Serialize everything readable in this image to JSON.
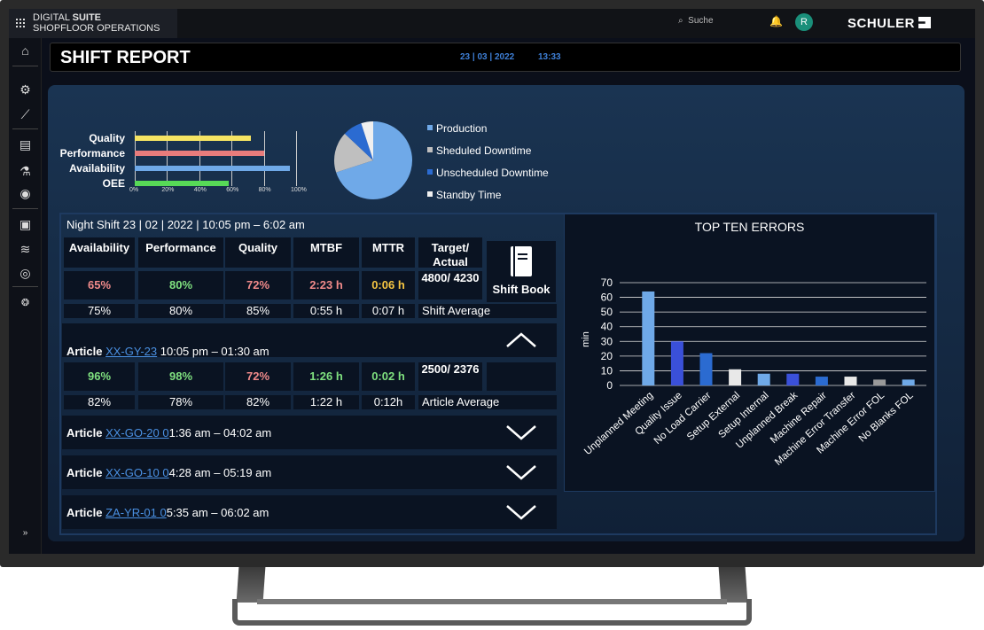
{
  "topbar": {
    "brand_line1_a": "DIGITAL ",
    "brand_line1_b": "SUITE",
    "brand_line2": "SHOPFLOOR OPERATIONS",
    "search_placeholder": "Suche",
    "avatar": "R",
    "logo": "SCHULER"
  },
  "header": {
    "title": "SHIFT REPORT",
    "date": "23 | 03 | 2022",
    "time": "13:33"
  },
  "kpi_bars": {
    "labels": [
      "Quality",
      "Performance",
      "Availability",
      "OEE"
    ],
    "values": [
      72,
      80,
      96,
      58
    ],
    "colors": [
      "#f5e463",
      "#e87c7c",
      "#6fa9e8",
      "#57d957"
    ],
    "ticks": [
      "0%",
      "20%",
      "40%",
      "60%",
      "80%",
      "100%"
    ]
  },
  "pie": {
    "legend": [
      "Production",
      "Sheduled Downtime",
      "Unscheduled Downtime",
      "Standby Time"
    ],
    "values": [
      70,
      17,
      8,
      5
    ],
    "colors": [
      "#6fa9e8",
      "#bfbfbf",
      "#2b6bd1",
      "#f0f0f0"
    ]
  },
  "shift": {
    "title": "Night Shift 23 | 02 | 2022 | 10:05 pm – 6:02 am",
    "headers": [
      "Availability",
      "Performance",
      "Quality",
      "MTBF",
      "MTTR",
      "Target/ Actual"
    ],
    "values": [
      "65%",
      "80%",
      "72%",
      "2:23 h",
      "0:06 h",
      "4800/ 4230"
    ],
    "value_colors": [
      "#f08a8a",
      "#7fe07f",
      "#f08a8a",
      "#f08a8a",
      "#f5c542",
      "#ffffff"
    ],
    "averages": [
      "75%",
      "80%",
      "85%",
      "0:55 h",
      "0:07 h"
    ],
    "average_label": "Shift Average",
    "shift_book": "Shift Book"
  },
  "articles": [
    {
      "prefix": "Article ",
      "code": "XX-GY-23",
      "time": " 10:05 pm – 01:30 am",
      "expanded": true,
      "values": [
        "96%",
        "98%",
        "72%",
        "1:26 h",
        "0:02 h",
        "2500/ 2376"
      ],
      "value_colors": [
        "#7fe07f",
        "#7fe07f",
        "#f08a8a",
        "#7fe07f",
        "#7fe07f",
        "#ffffff"
      ],
      "averages": [
        "82%",
        "78%",
        "82%",
        "1:22 h",
        "0:12h"
      ],
      "average_label": "Article Average"
    },
    {
      "prefix": "Article ",
      "code": "XX-GO-20",
      "code_tail": " 0",
      "time": "1:36 am – 04:02 am",
      "expanded": false
    },
    {
      "prefix": "Article ",
      "code": "XX-GO-10",
      "code_tail": " 0",
      "time": "4:28 am – 05:19 am",
      "expanded": false
    },
    {
      "prefix": "Article ",
      "code": "ZA-YR-01",
      "code_tail": " 0",
      "time": "5:35 am – 06:02 am",
      "expanded": false
    }
  ],
  "chart_data": {
    "type": "bar",
    "title": "TOP TEN ERRORS",
    "ylabel": "min",
    "ylim": [
      0,
      70
    ],
    "yticks": [
      0,
      10,
      20,
      30,
      40,
      50,
      60,
      70
    ],
    "categories": [
      "Unplanned Meeting",
      "Quality Issue",
      "No Load Carrier",
      "Setup External",
      "Setup Internal",
      "Unplanned Break",
      "Machine Repair",
      "Machine Error Transfer",
      "Machine Error FOL",
      "No Blanks FOL"
    ],
    "values": [
      64,
      30,
      22,
      11,
      8,
      8,
      6,
      6,
      4,
      4
    ],
    "colors": [
      "#6fa9e8",
      "#3a50d9",
      "#2b6bd1",
      "#e8e8e8",
      "#6fa9e8",
      "#3a50d9",
      "#2b6bd1",
      "#e8e8e8",
      "#9a9a9a",
      "#6fa9e8"
    ],
    "grid": true
  }
}
